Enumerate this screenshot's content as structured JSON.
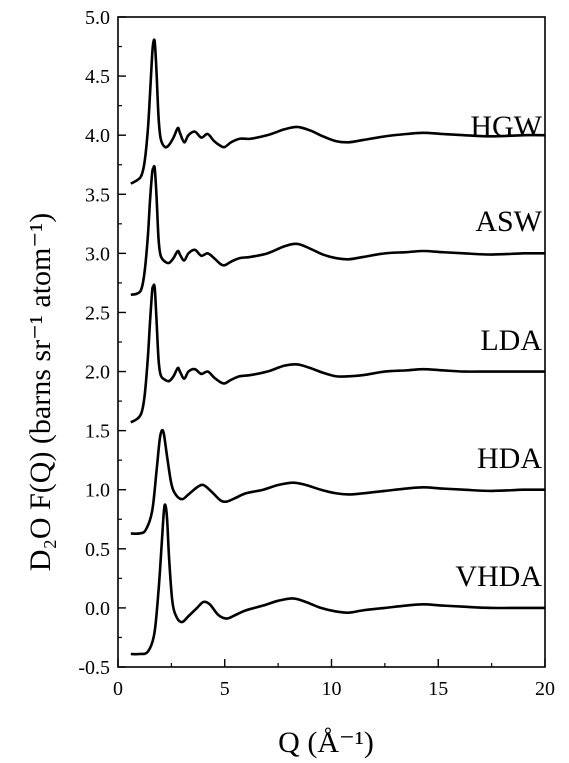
{
  "chart_data": {
    "type": "line",
    "xlabel": "Q (Å⁻¹)",
    "ylabel": "D₂O F(Q) (barns sr⁻¹ atom⁻¹)",
    "xlim": [
      0,
      20
    ],
    "ylim": [
      -0.5,
      5.0
    ],
    "x_ticks": [
      "0",
      "5",
      "10",
      "15",
      "20"
    ],
    "y_ticks": [
      "-0.5",
      "0.0",
      "0.5",
      "1.0",
      "1.5",
      "2.0",
      "2.5",
      "3.0",
      "3.5",
      "4.0",
      "4.5",
      "5.0"
    ],
    "grid": false,
    "series": [
      {
        "name": "HGW",
        "x": [
          0.6,
          0.9,
          1.1,
          1.25,
          1.4,
          1.5,
          1.6,
          1.65,
          1.72,
          1.8,
          1.9,
          2.0,
          2.2,
          2.4,
          2.6,
          2.8,
          2.9,
          3.1,
          3.3,
          3.6,
          3.9,
          4.2,
          4.5,
          4.8,
          5.0,
          5.3,
          5.7,
          6.2,
          7.0,
          7.8,
          8.4,
          9.0,
          9.6,
          10.2,
          10.8,
          11.5,
          12.5,
          13.5,
          14.3,
          15.2,
          16.2,
          17.5,
          19.0,
          20.0
        ],
        "y": [
          3.59,
          3.62,
          3.66,
          3.78,
          4.05,
          4.35,
          4.68,
          4.78,
          4.79,
          4.55,
          4.15,
          3.97,
          3.9,
          3.92,
          3.98,
          4.06,
          4.02,
          3.94,
          4.0,
          4.03,
          3.98,
          4.01,
          3.95,
          3.91,
          3.9,
          3.94,
          3.97,
          3.97,
          4.0,
          4.05,
          4.07,
          4.04,
          3.99,
          3.95,
          3.94,
          3.96,
          3.99,
          4.01,
          4.02,
          4.01,
          4.0,
          3.99,
          4.0,
          4.0
        ]
      },
      {
        "name": "ASW",
        "x": [
          0.6,
          0.9,
          1.1,
          1.25,
          1.4,
          1.5,
          1.6,
          1.65,
          1.72,
          1.8,
          1.9,
          2.0,
          2.2,
          2.4,
          2.6,
          2.8,
          2.9,
          3.1,
          3.3,
          3.6,
          3.9,
          4.2,
          4.5,
          4.8,
          5.0,
          5.3,
          5.7,
          6.2,
          7.0,
          7.8,
          8.4,
          9.0,
          9.6,
          10.2,
          10.8,
          11.5,
          12.5,
          13.5,
          14.3,
          15.2,
          16.2,
          17.5,
          19.0,
          20.0
        ],
        "y": [
          2.65,
          2.66,
          2.7,
          2.85,
          3.15,
          3.45,
          3.68,
          3.72,
          3.72,
          3.5,
          3.12,
          2.98,
          2.93,
          2.92,
          2.96,
          3.02,
          2.99,
          2.94,
          3.0,
          3.03,
          2.98,
          3.0,
          2.96,
          2.91,
          2.9,
          2.93,
          2.96,
          2.97,
          3.0,
          3.06,
          3.08,
          3.04,
          2.99,
          2.96,
          2.95,
          2.97,
          3.0,
          3.01,
          3.02,
          3.01,
          3.0,
          2.99,
          3.0,
          3.0
        ]
      },
      {
        "name": "LDA",
        "x": [
          0.6,
          0.9,
          1.1,
          1.25,
          1.4,
          1.5,
          1.6,
          1.65,
          1.72,
          1.8,
          1.9,
          2.0,
          2.2,
          2.4,
          2.6,
          2.8,
          2.9,
          3.1,
          3.3,
          3.6,
          3.9,
          4.2,
          4.5,
          4.8,
          5.0,
          5.3,
          5.7,
          6.2,
          7.0,
          7.8,
          8.4,
          9.0,
          9.6,
          10.2,
          10.8,
          11.5,
          12.5,
          13.5,
          14.3,
          15.2,
          16.2,
          17.5,
          19.0,
          20.0
        ],
        "y": [
          1.57,
          1.6,
          1.65,
          1.8,
          2.12,
          2.42,
          2.68,
          2.72,
          2.71,
          2.45,
          2.1,
          1.97,
          1.93,
          1.92,
          1.96,
          2.03,
          2.0,
          1.94,
          2.0,
          2.02,
          1.98,
          2.0,
          1.95,
          1.91,
          1.9,
          1.93,
          1.96,
          1.97,
          2.0,
          2.05,
          2.06,
          2.03,
          1.99,
          1.96,
          1.96,
          1.97,
          2.0,
          2.01,
          2.02,
          2.01,
          2.0,
          2.0,
          2.0,
          2.0
        ]
      },
      {
        "name": "HDA",
        "x": [
          0.6,
          1.0,
          1.3,
          1.6,
          1.8,
          1.95,
          2.05,
          2.15,
          2.3,
          2.5,
          2.7,
          3.0,
          3.3,
          3.7,
          4.0,
          4.4,
          4.8,
          5.1,
          5.5,
          6.0,
          6.8,
          7.5,
          8.2,
          8.8,
          9.5,
          10.2,
          10.8,
          11.5,
          12.5,
          13.5,
          14.3,
          15.2,
          16.2,
          17.5,
          19.0,
          20.0
        ],
        "y": [
          0.63,
          0.63,
          0.66,
          0.82,
          1.15,
          1.42,
          1.5,
          1.47,
          1.28,
          1.05,
          0.96,
          0.92,
          0.96,
          1.02,
          1.04,
          0.98,
          0.91,
          0.9,
          0.93,
          0.97,
          1.0,
          1.04,
          1.06,
          1.04,
          1.0,
          0.97,
          0.96,
          0.97,
          0.99,
          1.01,
          1.02,
          1.01,
          1.0,
          0.99,
          1.0,
          1.0
        ]
      },
      {
        "name": "VHDA",
        "x": [
          0.6,
          1.0,
          1.4,
          1.7,
          1.9,
          2.05,
          2.15,
          2.22,
          2.3,
          2.4,
          2.55,
          2.75,
          3.0,
          3.3,
          3.7,
          4.0,
          4.3,
          4.7,
          5.1,
          5.5,
          6.0,
          6.8,
          7.5,
          8.2,
          8.8,
          9.5,
          10.2,
          10.8,
          11.5,
          12.5,
          13.5,
          14.3,
          15.2,
          16.2,
          17.5,
          19.0,
          20.0
        ],
        "y": [
          -0.39,
          -0.39,
          -0.37,
          -0.22,
          0.15,
          0.55,
          0.82,
          0.87,
          0.75,
          0.4,
          0.05,
          -0.08,
          -0.12,
          -0.07,
          0.0,
          0.05,
          0.03,
          -0.06,
          -0.09,
          -0.06,
          -0.02,
          0.02,
          0.06,
          0.08,
          0.05,
          0.0,
          -0.03,
          -0.04,
          -0.02,
          0.0,
          0.02,
          0.03,
          0.02,
          0.01,
          0.0,
          0.0,
          0.0
        ]
      }
    ]
  }
}
